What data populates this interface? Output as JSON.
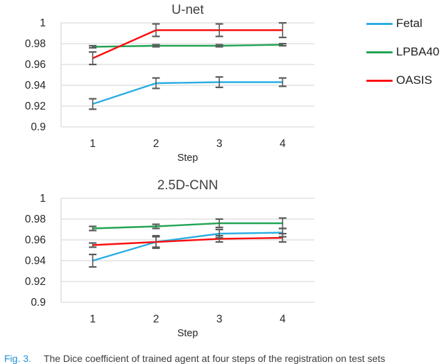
{
  "page": {
    "background": "#ffffff"
  },
  "colors": {
    "fetal": "#29ACE3",
    "lpba40": "#21A453",
    "oasis": "#FB0D0D",
    "gridline": "#D9D9D9",
    "error_bar": "#595959",
    "tick_label": "#262626",
    "title": "#3F3F3F"
  },
  "legend": {
    "items": [
      {
        "label": "Fetal",
        "color": "#29ACE3"
      },
      {
        "label": "LPBA40",
        "color": "#21A453"
      },
      {
        "label": "OASIS",
        "color": "#FB0D0D"
      }
    ]
  },
  "caption": {
    "label": "Fig. 3.",
    "text": "The Dice coefficient of trained agent at four steps of the registration on test sets"
  },
  "chart_data": [
    {
      "type": "line",
      "title": "U-net",
      "xlabel": "Step",
      "categories": [
        "1",
        "2",
        "3",
        "4"
      ],
      "ylim": [
        0.9,
        1.0
      ],
      "ytick_values": [
        1,
        0.98,
        0.96,
        0.94,
        0.92,
        0.9
      ],
      "ytick_labels": [
        "1",
        "0.98",
        "0.96",
        "0.94",
        "0.92",
        "0.9"
      ],
      "grid": true,
      "legend_position": "right",
      "error_bars": true,
      "series": [
        {
          "name": "Fetal",
          "color": "#29ACE3",
          "values": [
            0.922,
            0.942,
            0.943,
            0.943
          ],
          "errors": [
            0.005,
            0.005,
            0.005,
            0.004
          ]
        },
        {
          "name": "LPBA40",
          "color": "#21A453",
          "values": [
            0.977,
            0.978,
            0.978,
            0.979
          ],
          "errors": [
            0.001,
            0.001,
            0.001,
            0.001
          ]
        },
        {
          "name": "OASIS",
          "color": "#FB0D0D",
          "values": [
            0.966,
            0.993,
            0.993,
            0.993
          ],
          "errors": [
            0.006,
            0.006,
            0.006,
            0.007
          ]
        }
      ]
    },
    {
      "type": "line",
      "title": "2.5D-CNN",
      "xlabel": "Step",
      "categories": [
        "1",
        "2",
        "3",
        "4"
      ],
      "ylim": [
        0.9,
        1.0
      ],
      "ytick_values": [
        1,
        0.98,
        0.96,
        0.94,
        0.92,
        0.9
      ],
      "ytick_labels": [
        "1",
        "0.98",
        "0.96",
        "0.94",
        "0.92",
        "0.9"
      ],
      "grid": true,
      "legend_position": "none",
      "error_bars": true,
      "series": [
        {
          "name": "Fetal",
          "color": "#29ACE3",
          "values": [
            0.94,
            0.958,
            0.966,
            0.967
          ],
          "errors": [
            0.006,
            0.005,
            0.004,
            0.004
          ]
        },
        {
          "name": "LPBA40",
          "color": "#21A453",
          "values": [
            0.971,
            0.973,
            0.976,
            0.976
          ],
          "errors": [
            0.002,
            0.002,
            0.004,
            0.005
          ]
        },
        {
          "name": "OASIS",
          "color": "#FB0D0D",
          "values": [
            0.955,
            0.958,
            0.961,
            0.962
          ],
          "errors": [
            0.002,
            0.006,
            0.003,
            0.004
          ]
        }
      ]
    }
  ]
}
